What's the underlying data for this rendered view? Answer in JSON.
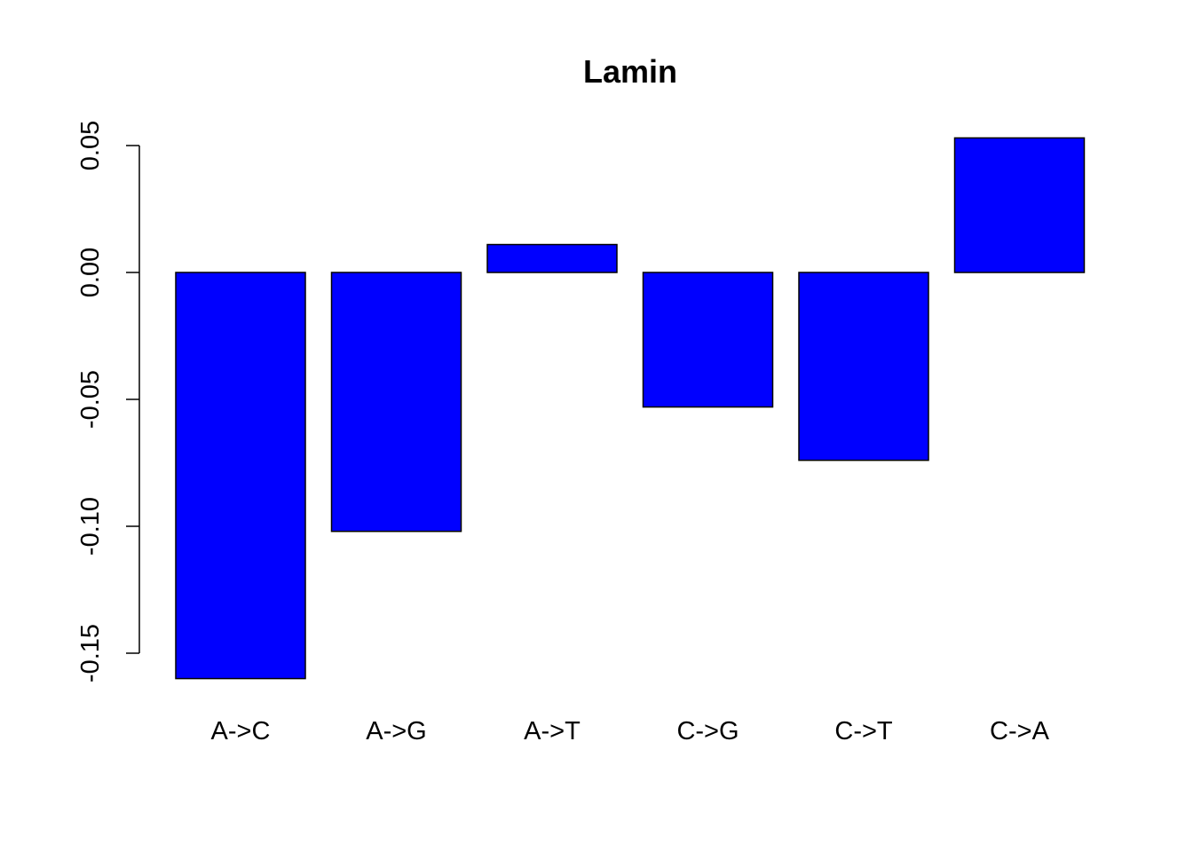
{
  "chart_data": {
    "type": "bar",
    "title": "Lamin",
    "xlabel": "",
    "ylabel": "",
    "categories": [
      "A->C",
      "A->G",
      "A->T",
      "C->G",
      "C->T",
      "C->A"
    ],
    "values": [
      -0.16,
      -0.102,
      0.011,
      -0.053,
      -0.074,
      0.053
    ],
    "ylim": [
      -0.16,
      0.053
    ],
    "yticks": [
      0.05,
      0.0,
      -0.05,
      -0.1,
      -0.15
    ],
    "ytick_labels": [
      "0.05",
      "0.00",
      "-0.05",
      "-0.10",
      "-0.15"
    ],
    "bar_color": "#0000ff",
    "grid": false,
    "legend": "none"
  }
}
